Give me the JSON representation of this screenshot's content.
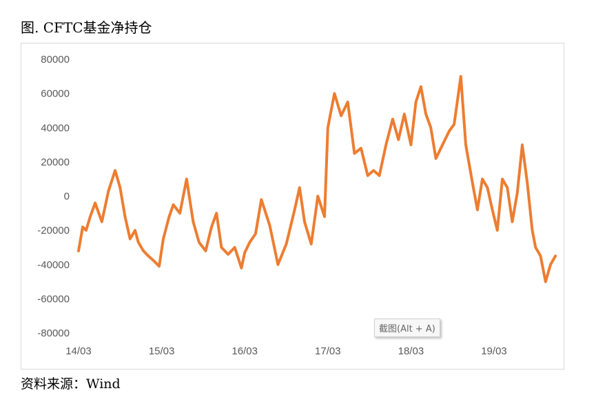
{
  "title": "图. CFTC基金净持仓",
  "source": "资料来源：Wind",
  "watermark": "截图(Alt + A)",
  "colors": {
    "line": "#ED7D31",
    "tick": "#595959",
    "frame": "#d9d9d9"
  },
  "chart_data": {
    "type": "line",
    "title": "图. CFTC基金净持仓",
    "xlabel": "",
    "ylabel": "",
    "ylim": [
      -80000,
      80000
    ],
    "yticks": [
      80000,
      60000,
      40000,
      20000,
      0,
      -20000,
      -40000,
      -60000,
      -80000
    ],
    "xticks": [
      "14/03",
      "15/03",
      "16/03",
      "17/03",
      "18/03",
      "19/03"
    ],
    "grid": false,
    "legend": "none",
    "x": [
      0.0,
      0.05,
      0.09,
      0.14,
      0.2,
      0.28,
      0.36,
      0.44,
      0.5,
      0.56,
      0.62,
      0.68,
      0.72,
      0.78,
      0.84,
      0.91,
      0.97,
      1.02,
      1.09,
      1.14,
      1.22,
      1.3,
      1.38,
      1.45,
      1.53,
      1.6,
      1.66,
      1.72,
      1.8,
      1.88,
      1.96,
      2.0,
      2.06,
      2.13,
      2.2,
      2.3,
      2.4,
      2.5,
      2.6,
      2.66,
      2.72,
      2.8,
      2.88,
      2.96,
      3.0,
      3.08,
      3.16,
      3.24,
      3.32,
      3.4,
      3.48,
      3.55,
      3.62,
      3.7,
      3.78,
      3.85,
      3.92,
      4.0,
      4.06,
      4.12,
      4.18,
      4.24,
      4.3,
      4.38,
      4.46,
      4.52,
      4.6,
      4.66,
      4.74,
      4.8,
      4.86,
      4.92,
      4.98,
      5.04,
      5.1,
      5.16,
      5.22,
      5.28,
      5.34,
      5.4,
      5.46,
      5.5,
      5.56,
      5.62,
      5.68,
      5.74
    ],
    "values": [
      -32000,
      -18000,
      -20000,
      -12000,
      -4000,
      -15000,
      3000,
      15000,
      5000,
      -12000,
      -25000,
      -20000,
      -27000,
      -32000,
      -35000,
      -38000,
      -41000,
      -25000,
      -12000,
      -5000,
      -10000,
      10000,
      -15000,
      -27000,
      -32000,
      -18000,
      -10000,
      -30000,
      -34000,
      -30000,
      -42000,
      -33000,
      -27000,
      -22000,
      -2000,
      -17000,
      -40000,
      -28000,
      -8000,
      5000,
      -15000,
      -28000,
      0,
      -12000,
      40000,
      60000,
      47000,
      55000,
      25000,
      28000,
      12000,
      15000,
      12000,
      30000,
      45000,
      33000,
      48000,
      30000,
      55000,
      64000,
      48000,
      40000,
      22000,
      30000,
      38000,
      42000,
      70000,
      30000,
      8000,
      -8000,
      10000,
      5000,
      -8000,
      -20000,
      10000,
      5000,
      -15000,
      2000,
      30000,
      8000,
      -20000,
      -30000,
      -35000,
      -50000,
      -40000,
      -35000
    ]
  }
}
